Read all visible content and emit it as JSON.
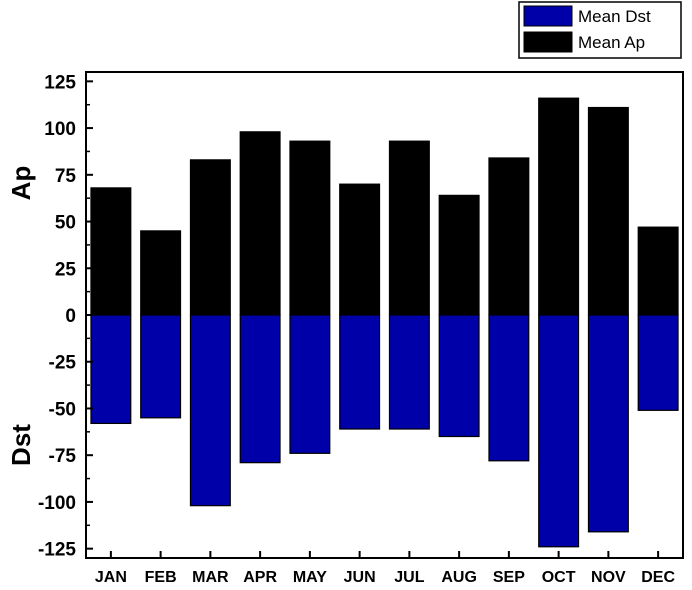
{
  "chart_data": {
    "type": "bar",
    "categories": [
      "JAN",
      "FEB",
      "MAR",
      "APR",
      "MAY",
      "JUN",
      "JUL",
      "AUG",
      "SEP",
      "OCT",
      "NOV",
      "DEC"
    ],
    "series": [
      {
        "name": "Mean Ap",
        "color": "#000000",
        "values": [
          68,
          45,
          83,
          98,
          93,
          70,
          93,
          64,
          84,
          116,
          111,
          47
        ]
      },
      {
        "name": "Mean Dst",
        "color": "#0000a8",
        "values": [
          -58,
          -55,
          -102,
          -79,
          -74,
          -61,
          -61,
          -65,
          -78,
          -124,
          -116,
          -51
        ]
      }
    ],
    "ylim": [
      -130,
      130
    ],
    "yticks": [
      "125",
      "100",
      "75",
      "50",
      "25",
      "0",
      "-25",
      "-50",
      "-75",
      "-100",
      "-125"
    ],
    "ylabel_upper": "Ap",
    "ylabel_lower": "Dst",
    "legend_position": "top-right",
    "grid": false
  }
}
